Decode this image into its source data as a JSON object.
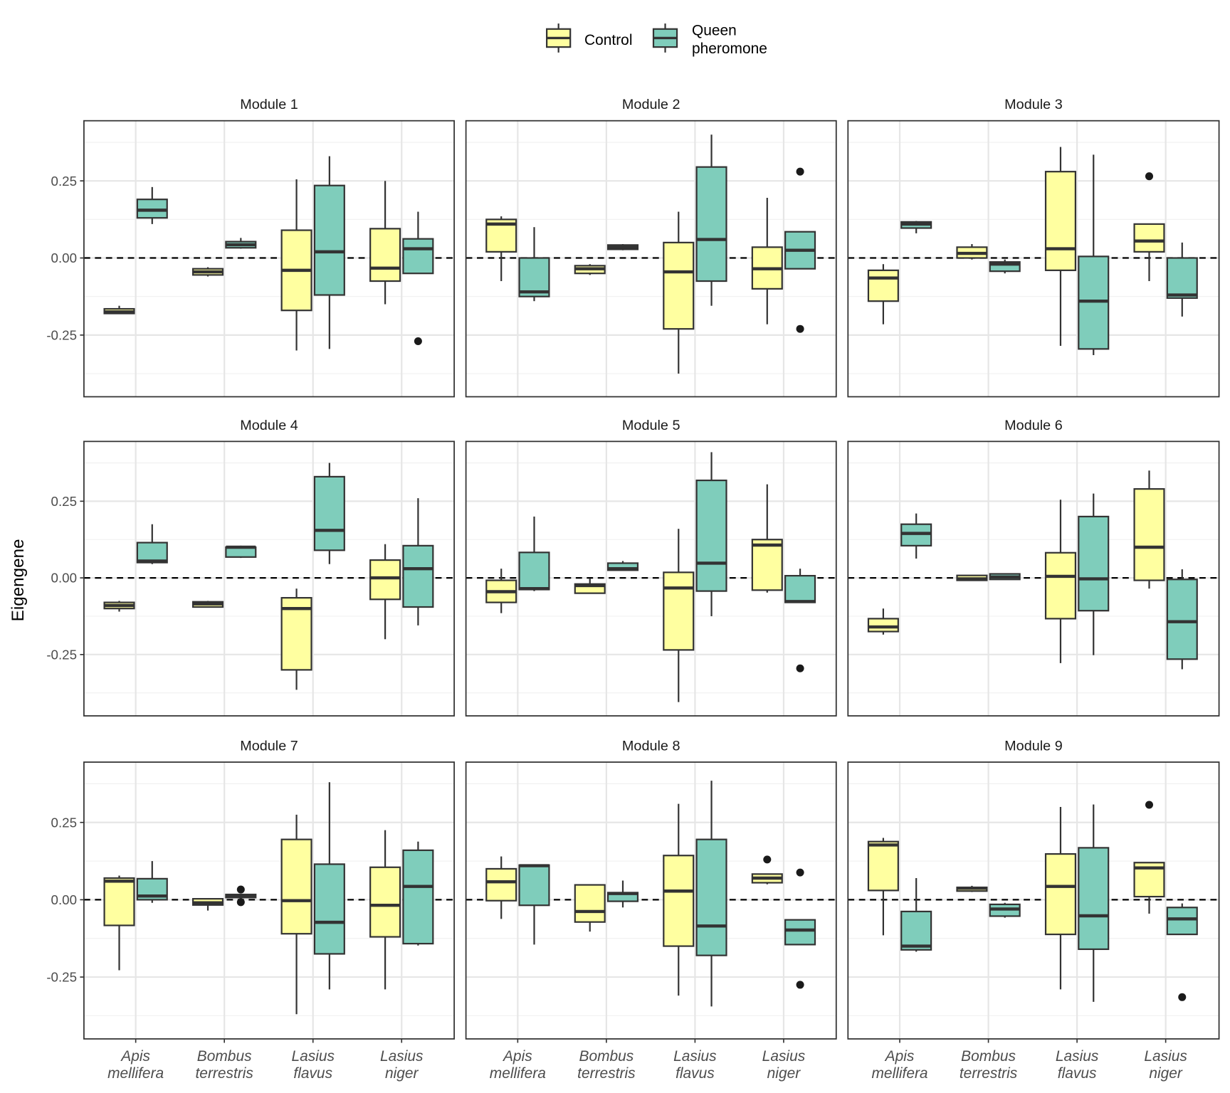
{
  "chart_data": {
    "type": "box",
    "ylabel": "Eigengene",
    "xlabel": "",
    "ylim": [
      -0.45,
      0.445
    ],
    "yticks": [
      -0.25,
      0,
      0.25
    ],
    "ytick_labels": [
      "-0.25",
      "0.00",
      "0.25"
    ],
    "reference_line": 0,
    "grid": true,
    "legend": {
      "position": "top",
      "entries": [
        {
          "key": "c",
          "label": "Control",
          "color": "#FFFFA0"
        },
        {
          "key": "q",
          "label_lines": [
            "Queen",
            "pheromone"
          ],
          "color": "#7FCDBB"
        }
      ]
    },
    "categories": [
      {
        "line1": "Apis",
        "line2": "mellifera"
      },
      {
        "line1": "Bombus",
        "line2": "terrestris"
      },
      {
        "line1": "Lasius",
        "line2": "flavus"
      },
      {
        "line1": "Lasius",
        "line2": "niger"
      }
    ],
    "stat_order": [
      "whisker_low",
      "q1",
      "median",
      "q3",
      "whisker_high"
    ],
    "modules": [
      {
        "title": "Module 1",
        "data": [
          {
            "c": [
              -0.18,
              -0.18,
              -0.175,
              -0.165,
              -0.155
            ],
            "q": [
              0.11,
              0.13,
              0.155,
              0.19,
              0.23
            ]
          },
          {
            "c": [
              -0.06,
              -0.055,
              -0.045,
              -0.035,
              -0.03
            ],
            "q": [
              0.03,
              0.033,
              0.043,
              0.053,
              0.065
            ]
          },
          {
            "c": [
              -0.3,
              -0.17,
              -0.04,
              0.09,
              0.255
            ],
            "q": [
              -0.295,
              -0.12,
              0.02,
              0.235,
              0.33
            ]
          },
          {
            "c": [
              -0.15,
              -0.075,
              -0.033,
              0.095,
              0.25
            ],
            "q": [
              -0.05,
              -0.05,
              0.03,
              0.062,
              0.15
            ],
            "q_out": [
              -0.27
            ]
          }
        ]
      },
      {
        "title": "Module 2",
        "data": [
          {
            "c": [
              -0.075,
              0.02,
              0.11,
              0.125,
              0.135
            ],
            "q": [
              -0.14,
              -0.125,
              -0.11,
              0,
              0.1
            ]
          },
          {
            "c": [
              -0.055,
              -0.05,
              -0.035,
              -0.025,
              -0.02
            ],
            "q": [
              0.025,
              0.028,
              0.035,
              0.042,
              0.045
            ]
          },
          {
            "c": [
              -0.375,
              -0.23,
              -0.045,
              0.05,
              0.15
            ],
            "q": [
              -0.155,
              -0.075,
              0.06,
              0.295,
              0.4
            ]
          },
          {
            "c": [
              -0.215,
              -0.1,
              -0.035,
              0.035,
              0.195
            ],
            "q": [
              -0.035,
              -0.035,
              0.025,
              0.085,
              0.085
            ],
            "q_out": [
              0.28,
              -0.23
            ]
          }
        ]
      },
      {
        "title": "Module 3",
        "data": [
          {
            "c": [
              -0.215,
              -0.14,
              -0.065,
              -0.04,
              -0.02
            ],
            "q": [
              0.08,
              0.097,
              0.11,
              0.117,
              0.12
            ]
          },
          {
            "c": [
              -0.005,
              0,
              0.015,
              0.035,
              0.045
            ],
            "q": [
              -0.05,
              -0.043,
              -0.02,
              -0.013,
              -0.005
            ]
          },
          {
            "c": [
              -0.285,
              -0.04,
              0.03,
              0.28,
              0.36
            ],
            "q": [
              -0.315,
              -0.295,
              -0.14,
              0.005,
              0.335
            ]
          },
          {
            "c": [
              -0.075,
              0.02,
              0.055,
              0.11,
              0.11
            ],
            "q": [
              -0.19,
              -0.13,
              -0.12,
              0,
              0.05
            ],
            "c_out": [
              0.265
            ]
          }
        ]
      },
      {
        "title": "Module 4",
        "data": [
          {
            "c": [
              -0.11,
              -0.1,
              -0.09,
              -0.08,
              -0.075
            ],
            "q": [
              0.045,
              0.05,
              0.055,
              0.115,
              0.175
            ]
          },
          {
            "c": [
              -0.095,
              -0.095,
              -0.085,
              -0.078,
              -0.075
            ],
            "q": [
              0.065,
              0.068,
              0.1,
              0.1,
              0.105
            ]
          },
          {
            "c": [
              -0.365,
              -0.3,
              -0.1,
              -0.065,
              -0.035
            ],
            "q": [
              0.045,
              0.09,
              0.155,
              0.33,
              0.375
            ]
          },
          {
            "c": [
              -0.2,
              -0.07,
              0,
              0.058,
              0.11
            ],
            "q": [
              -0.155,
              -0.095,
              0.03,
              0.105,
              0.26
            ]
          }
        ]
      },
      {
        "title": "Module 5",
        "data": [
          {
            "c": [
              -0.115,
              -0.08,
              -0.045,
              -0.008,
              0.03
            ],
            "q": [
              -0.043,
              -0.038,
              -0.035,
              0.083,
              0.2
            ]
          },
          {
            "c": [
              -0.05,
              -0.05,
              -0.025,
              -0.02,
              -0.003
            ],
            "q": [
              0.025,
              0.025,
              0.03,
              0.048,
              0.055
            ]
          },
          {
            "c": [
              -0.405,
              -0.235,
              -0.033,
              0.018,
              0.16
            ],
            "q": [
              -0.125,
              -0.043,
              0.048,
              0.318,
              0.41
            ]
          },
          {
            "c": [
              -0.048,
              -0.04,
              0.107,
              0.125,
              0.305
            ],
            "q": [
              -0.08,
              -0.08,
              -0.077,
              0.007,
              0.03
            ],
            "q_out": [
              -0.295
            ]
          }
        ]
      },
      {
        "title": "Module 6",
        "data": [
          {
            "c": [
              -0.185,
              -0.175,
              -0.16,
              -0.133,
              -0.1
            ],
            "q": [
              0.063,
              0.105,
              0.145,
              0.175,
              0.21
            ]
          },
          {
            "c": [
              -0.008,
              -0.008,
              -0.003,
              0.008,
              0.008
            ],
            "q": [
              -0.005,
              -0.005,
              0.003,
              0.013,
              0.013
            ]
          },
          {
            "c": [
              -0.278,
              -0.133,
              0.005,
              0.082,
              0.255
            ],
            "q": [
              -0.252,
              -0.107,
              -0.003,
              0.2,
              0.275
            ]
          },
          {
            "c": [
              -0.035,
              -0.008,
              0.1,
              0.29,
              0.35
            ],
            "q": [
              -0.298,
              -0.265,
              -0.143,
              -0.005,
              0.028
            ]
          }
        ]
      },
      {
        "title": "Module 7",
        "data": [
          {
            "c": [
              -0.228,
              -0.083,
              0.06,
              0.07,
              0.078
            ],
            "q": [
              -0.01,
              0,
              0.012,
              0.068,
              0.125
            ]
          },
          {
            "c": [
              -0.035,
              -0.017,
              -0.01,
              0.003,
              0.003
            ],
            "q": [
              0.007,
              0.007,
              0.013,
              0.017,
              0.017
            ],
            "q_out": [
              0.033,
              -0.008
            ]
          },
          {
            "c": [
              -0.37,
              -0.11,
              -0.003,
              0.195,
              0.275
            ],
            "q": [
              -0.29,
              -0.175,
              -0.073,
              0.115,
              0.38
            ]
          },
          {
            "c": [
              -0.29,
              -0.12,
              -0.018,
              0.105,
              0.225
            ],
            "q": [
              -0.148,
              -0.142,
              0.043,
              0.16,
              0.188
            ]
          }
        ]
      },
      {
        "title": "Module 8",
        "data": [
          {
            "c": [
              -0.062,
              -0.003,
              0.058,
              0.1,
              0.14
            ],
            "q": [
              -0.145,
              -0.018,
              0.11,
              0.112,
              0.112
            ]
          },
          {
            "c": [
              -0.103,
              -0.072,
              -0.038,
              0.048,
              0.048
            ],
            "q": [
              -0.025,
              -0.005,
              0.02,
              0.023,
              0.062
            ]
          },
          {
            "c": [
              -0.31,
              -0.15,
              0.028,
              0.143,
              0.31
            ],
            "q": [
              -0.345,
              -0.18,
              -0.085,
              0.195,
              0.385
            ]
          },
          {
            "c": [
              0.05,
              0.055,
              0.07,
              0.083,
              0.083
            ],
            "q": [
              -0.145,
              -0.145,
              -0.098,
              -0.065,
              -0.065
            ],
            "c_out": [
              0.13
            ],
            "q_out": [
              0.088,
              -0.275
            ]
          }
        ]
      },
      {
        "title": "Module 9",
        "data": [
          {
            "c": [
              -0.115,
              0.03,
              0.177,
              0.188,
              0.2
            ],
            "q": [
              -0.168,
              -0.162,
              -0.15,
              -0.038,
              0.07
            ]
          },
          {
            "c": [
              0.025,
              0.028,
              0.037,
              0.04,
              0.045
            ],
            "q": [
              -0.058,
              -0.053,
              -0.03,
              -0.015,
              -0.01
            ]
          },
          {
            "c": [
              -0.29,
              -0.112,
              0.043,
              0.148,
              0.3
            ],
            "q": [
              -0.33,
              -0.16,
              -0.052,
              0.168,
              0.308
            ]
          },
          {
            "c": [
              -0.045,
              0.01,
              0.103,
              0.12,
              0.12
            ],
            "q": [
              -0.113,
              -0.112,
              -0.062,
              -0.025,
              -0.012
            ],
            "c_out": [
              0.307
            ],
            "q_out": [
              -0.315
            ]
          }
        ]
      }
    ]
  }
}
